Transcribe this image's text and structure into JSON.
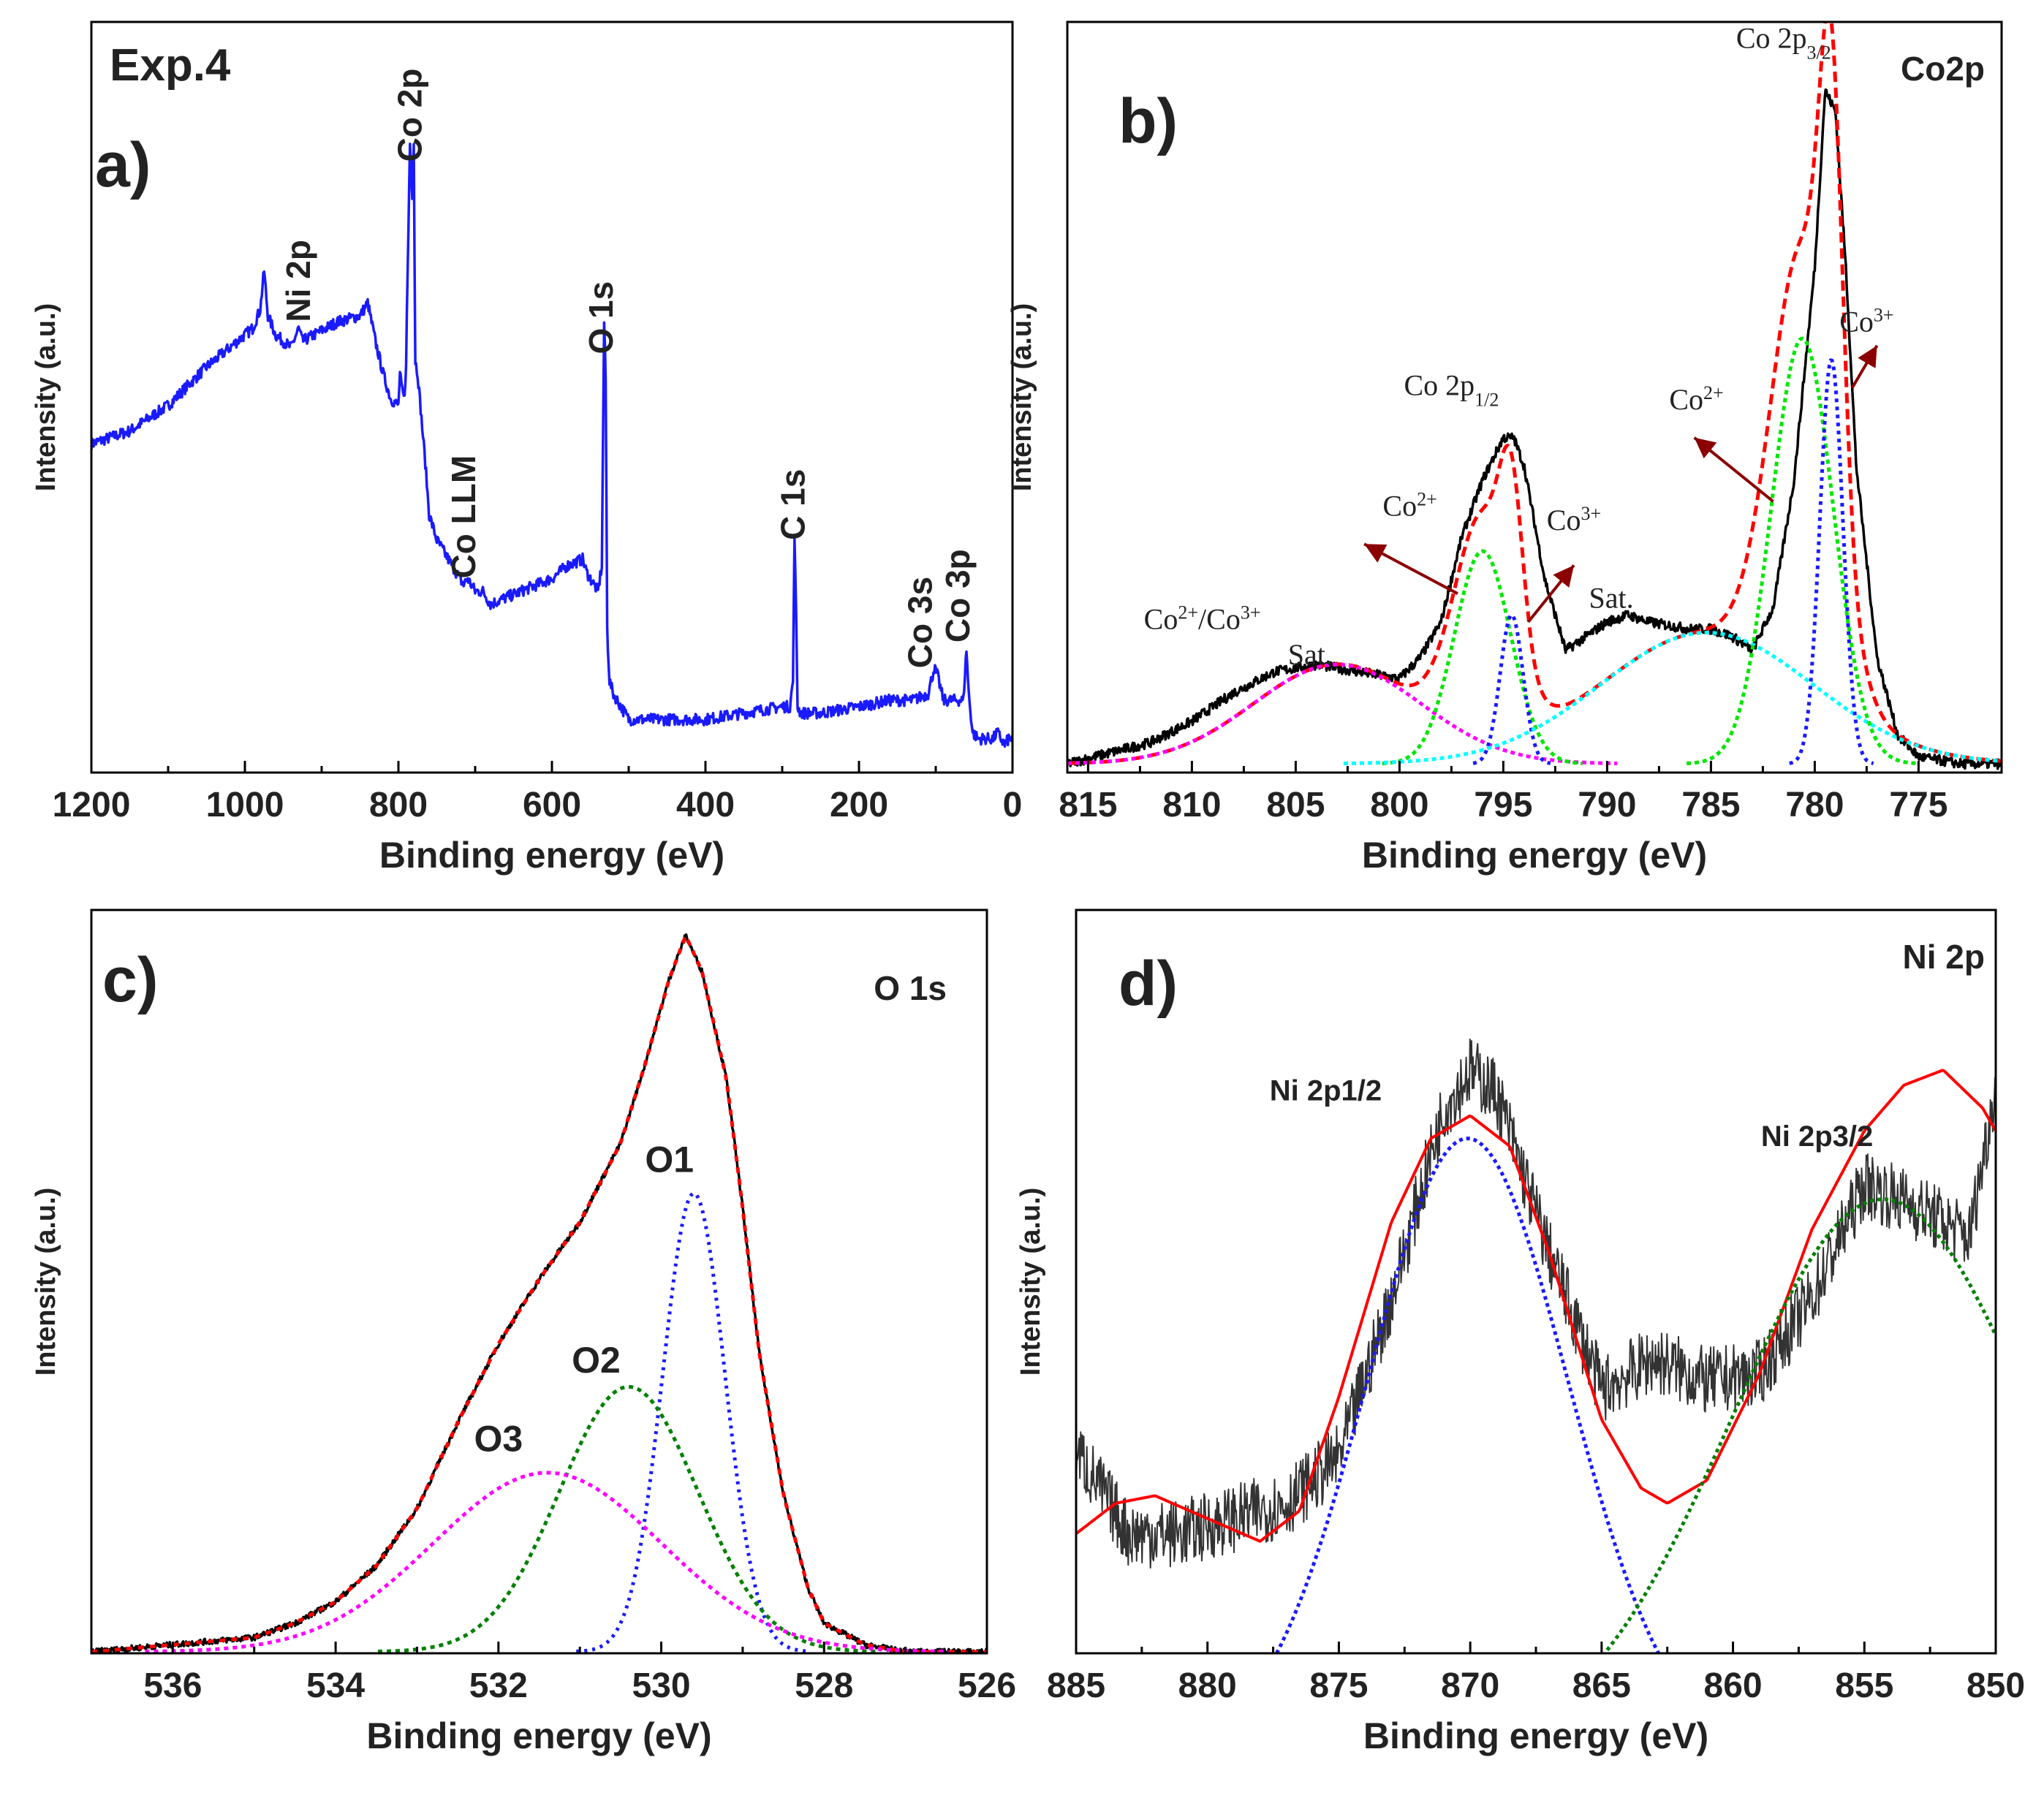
{
  "figure": {
    "label": "Exp.4"
  },
  "chart_data": [
    {
      "id": "a",
      "type": "line",
      "panel_letter": "a)",
      "title": "",
      "xlabel": "Binding energy (eV)",
      "ylabel": "Intensity (a.u.)",
      "xlim": [
        1200,
        0
      ],
      "x_reversed": true,
      "xticks": [
        1200,
        1000,
        800,
        600,
        400,
        200,
        0
      ],
      "ylim": [
        0,
        100
      ],
      "series": [
        {
          "color": "#1a1aff",
          "noise": 0.9,
          "x": [
            1200,
            1150,
            1100,
            1050,
            1000,
            990,
            980,
            975,
            970,
            960,
            940,
            930,
            925,
            910,
            880,
            850,
            840,
            830,
            820,
            810,
            800,
            798,
            795,
            792,
            790,
            785,
            782,
            780,
            778,
            775,
            770,
            765,
            760,
            750,
            740,
            730,
            720,
            715,
            710,
            705,
            700,
            690,
            680,
            660,
            640,
            620,
            600,
            580,
            560,
            555,
            545,
            540,
            535,
            532,
            530,
            528,
            525,
            520,
            510,
            500,
            480,
            450,
            400,
            350,
            300,
            290,
            286,
            284,
            282,
            280,
            276,
            270,
            250,
            200,
            160,
            130,
            110,
            102,
            98,
            90,
            80,
            70,
            64,
            60,
            57,
            52,
            45,
            40,
            30,
            25,
            20,
            15,
            10,
            5,
            0
          ],
          "y": [
            49,
            51,
            55,
            61,
            66,
            67,
            70,
            76,
            69,
            66,
            64,
            67,
            65,
            66,
            68,
            69,
            71,
            65,
            60,
            56,
            55,
            60,
            57,
            56,
            62,
            96,
            88,
            96,
            62,
            60,
            53,
            46,
            38,
            34,
            32,
            30,
            28,
            27,
            28,
            27,
            26,
            26,
            24,
            25,
            26,
            27,
            28,
            30,
            31,
            29,
            27,
            26,
            30,
            68,
            59,
            20,
            12,
            10,
            8,
            6,
            6,
            6,
            6,
            7,
            8,
            8,
            12,
            35,
            23,
            8,
            7,
            7,
            7,
            8,
            9,
            9,
            10,
            14,
            13,
            9,
            9,
            9,
            9,
            17,
            10,
            4,
            3,
            3,
            3,
            3,
            4,
            3,
            2,
            3,
            3
          ]
        }
      ],
      "labels": [
        {
          "text": "Ni 2p",
          "x": 915,
          "y": 68,
          "rotate": true
        },
        {
          "text": "Co 2p",
          "x": 770,
          "y": 93,
          "rotate": true
        },
        {
          "text": "O 1s",
          "x": 521,
          "y": 63,
          "rotate": true
        },
        {
          "text": "Co LLM",
          "x": 700,
          "y": 28,
          "rotate": true
        },
        {
          "text": "C 1s",
          "x": 271,
          "y": 34,
          "rotate": true
        },
        {
          "text": "Co 3s",
          "x": 105,
          "y": 14,
          "rotate": true
        },
        {
          "text": "Co 3p",
          "x": 56,
          "y": 18,
          "rotate": true
        }
      ]
    },
    {
      "id": "b",
      "type": "line",
      "panel_letter": "b)",
      "title": "Co2p",
      "xlabel": "Binding energy (eV)",
      "ylabel": "Intensity (a.u.)",
      "xlim": [
        816,
        771
      ],
      "x_reversed": true,
      "xticks": [
        815,
        810,
        805,
        800,
        795,
        790,
        785,
        780,
        775
      ],
      "ylim": [
        0,
        100
      ],
      "series": [
        {
          "color": "#000000",
          "noise": 0.7,
          "x": [
            816,
            812,
            810,
            808,
            806,
            804,
            802,
            800,
            799,
            798,
            797,
            796,
            795,
            794.5,
            794,
            793,
            792,
            791,
            790,
            789,
            788,
            786,
            785,
            784,
            783,
            782,
            781,
            780,
            779.5,
            779,
            778.5,
            778,
            777,
            776,
            775,
            773,
            771
          ],
          "y": [
            0,
            3,
            6,
            10,
            13,
            14,
            13,
            12,
            15,
            20,
            32,
            40,
            46,
            46,
            42,
            26,
            16,
            18,
            20,
            21,
            20,
            19,
            19,
            18,
            16,
            22,
            40,
            70,
            95,
            92,
            70,
            42,
            15,
            4,
            1,
            0,
            0
          ]
        },
        {
          "color": "#ff0000",
          "dash": "14 8",
          "model": "sum"
        },
        {
          "color": "#ff00ff",
          "dash": "6 5",
          "model": "g",
          "center": 803.0,
          "height": 14,
          "fwhm": 9.5
        },
        {
          "color": "#00e600",
          "dash": "6 5",
          "model": "g",
          "center": 796.0,
          "height": 30,
          "fwhm": 3.2
        },
        {
          "color": "#1a1aff",
          "dash": "5 6",
          "model": "g",
          "center": 794.6,
          "height": 21,
          "fwhm": 1.3
        },
        {
          "color": "#00ffff",
          "dash": "6 5",
          "model": "g",
          "center": 785.2,
          "height": 18.5,
          "fwhm": 12
        },
        {
          "color": "#00e600",
          "dash": "6 5",
          "model": "g",
          "center": 780.6,
          "height": 60,
          "fwhm": 3.5
        },
        {
          "color": "#1a1aff",
          "dash": "5 6",
          "model": "g",
          "center": 779.2,
          "height": 57,
          "fwhm": 1.3
        }
      ],
      "annotations": [
        {
          "text": "Co 2p",
          "sub": "3/2",
          "x": 781.5,
          "y": 101
        },
        {
          "text": "Co 2p",
          "sub": "1/2",
          "x": 797.5,
          "y": 52
        },
        {
          "text": "Co",
          "sup": "2+",
          "x": 799.5,
          "y": 35
        },
        {
          "text": "Co",
          "sup": "3+",
          "x": 791.6,
          "y": 33
        },
        {
          "text": "Co",
          "sup": "2+",
          "x": 785.7,
          "y": 50
        },
        {
          "text": "Co",
          "sup": "3+",
          "x": 777.5,
          "y": 61
        },
        {
          "text": "Sat.",
          "x": 789.8,
          "y": 22
        },
        {
          "text": "Co",
          "sup": "2+",
          "tail": "/Co",
          "sup2": "3+",
          "x": 809.5,
          "y": 19
        },
        {
          "text": "Sat.",
          "x": 804.3,
          "y": 14
        }
      ],
      "arrows": [
        {
          "from": [
            797.2,
            24
          ],
          "to": [
            801.7,
            31
          ]
        },
        {
          "from": [
            793.8,
            20
          ],
          "to": [
            791.6,
            28
          ]
        },
        {
          "from": [
            782.0,
            37
          ],
          "to": [
            785.8,
            46
          ]
        },
        {
          "from": [
            778.2,
            53
          ],
          "to": [
            777.0,
            59
          ]
        }
      ]
    },
    {
      "id": "c",
      "type": "line",
      "panel_letter": "c)",
      "title": "O 1s",
      "xlabel": "Binding energy (eV)",
      "ylabel": "Intensity (a.u.)",
      "xlim": [
        537,
        526
      ],
      "x_reversed": true,
      "xticks": [
        536,
        534,
        532,
        530,
        528,
        526
      ],
      "ylim": [
        0,
        100
      ],
      "series": [
        {
          "color": "#000000",
          "noise": 0.4,
          "x": [
            537,
            536,
            535,
            534.5,
            534,
            533.5,
            533,
            532.5,
            532,
            531.5,
            531,
            530.5,
            530.2,
            529.9,
            529.7,
            529.5,
            529.2,
            529,
            528.8,
            528.5,
            528.2,
            528,
            527.5,
            527,
            526
          ],
          "y": [
            0,
            1,
            2,
            4,
            7,
            12,
            20,
            32,
            43,
            52,
            60,
            71,
            82,
            94,
            100,
            95,
            80,
            62,
            42,
            22,
            9,
            4,
            1,
            0,
            0
          ]
        },
        {
          "color": "#ff0000",
          "dash": "8 8"
        },
        {
          "color": "#1a1aff",
          "dash": "4 7",
          "model": "g",
          "center": 529.6,
          "height": 64,
          "fwhm": 0.9
        },
        {
          "color": "#008000",
          "dash": "6 6",
          "model": "g",
          "center": 530.4,
          "height": 37,
          "fwhm": 2.0
        },
        {
          "color": "#ff00ff",
          "dash": "6 6",
          "model": "g",
          "center": 531.4,
          "height": 25,
          "fwhm": 3.3
        }
      ],
      "annotations": [
        {
          "text": "O1",
          "x": 529.9,
          "y": 67
        },
        {
          "text": "O2",
          "x": 530.8,
          "y": 39
        },
        {
          "text": "O3",
          "x": 532.0,
          "y": 28
        }
      ]
    },
    {
      "id": "d",
      "type": "line",
      "panel_letter": "d)",
      "title": "Ni 2p",
      "xlabel": "Binding energy (eV)",
      "ylabel": "Intensity (a.u.)",
      "xlim": [
        885,
        850
      ],
      "x_reversed": true,
      "xticks": [
        885,
        880,
        875,
        870,
        865,
        860,
        855,
        850
      ],
      "ylim": [
        0,
        100
      ],
      "series": [
        {
          "color": "#333333",
          "width": 2,
          "noise": 4.5,
          "x": [
            885,
            883,
            881,
            879,
            877,
            875,
            873,
            871,
            870,
            869,
            867,
            865,
            863,
            861,
            859,
            857,
            855,
            853,
            851,
            850
          ],
          "y": [
            40,
            29,
            29,
            31,
            33,
            39,
            60,
            85,
            90,
            87,
            66,
            48,
            52,
            49,
            50,
            60,
            75,
            72,
            68,
            88
          ]
        },
        {
          "color": "#ff0000",
          "width": 4,
          "x": [
            885,
            883.5,
            882,
            880,
            878,
            876.5,
            875,
            873,
            871.5,
            870,
            868.5,
            867,
            865,
            863.5,
            862.5,
            861,
            859,
            857,
            855,
            853.5,
            852,
            850.5,
            850
          ],
          "y": [
            29,
            33,
            34,
            31,
            28,
            32,
            47,
            70,
            81,
            84,
            80,
            66,
            44,
            35,
            33,
            36,
            50,
            69,
            82,
            88,
            90,
            85,
            82
          ]
        },
        {
          "color": "#1a1aff",
          "dash": "5 5",
          "model": "g",
          "center": 870.1,
          "height": 81,
          "fwhm": 9.0
        },
        {
          "color": "#008000",
          "dash": "5 5",
          "model": "g",
          "center": 854.3,
          "height": 73,
          "fwhm": 13.5
        }
      ],
      "annotations": [
        {
          "text": "Ni 2p1/2",
          "x": 875.5,
          "y": 86
        },
        {
          "text": "Ni 2p3/2",
          "x": 856.8,
          "y": 80
        }
      ]
    }
  ]
}
